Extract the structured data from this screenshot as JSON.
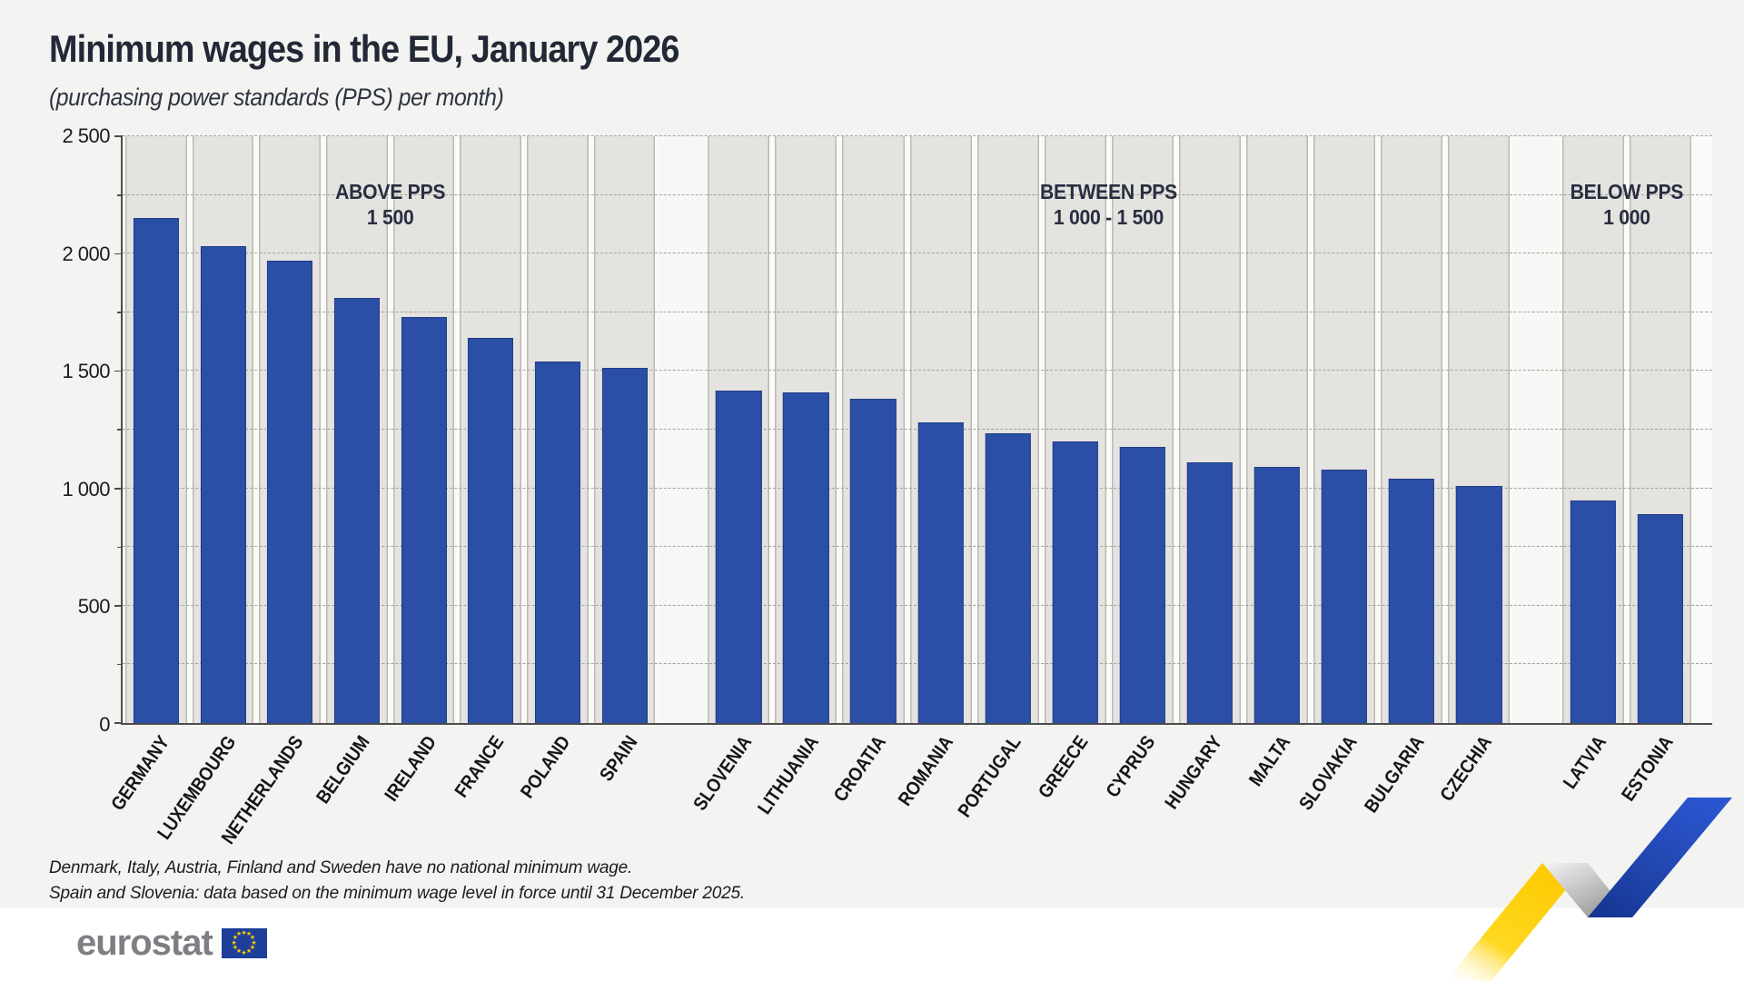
{
  "header": {
    "title": "Minimum wages in the EU, January 2026",
    "subtitle": "(purchasing power standards (PPS) per month)"
  },
  "chart_data": {
    "type": "bar",
    "title": "Minimum wages in the EU, January 2026",
    "subtitle": "(purchasing power standards (PPS) per month)",
    "unit": "PPS per month",
    "ylim": [
      0,
      2500
    ],
    "y_tick_labels": [
      "0",
      "500",
      "1 000",
      "1 500",
      "2 000",
      "2 500"
    ],
    "y_minor_interval": 250,
    "grid": "horizontal dashed minor gridlines every 250, no vertical gridlines",
    "legend": "none",
    "bar_color": "#2b4ea6",
    "groups": [
      {
        "label_line1": "ABOVE PPS",
        "label_line2": "1 500",
        "countries": [
          {
            "name": "GERMANY",
            "value": 2150
          },
          {
            "name": "LUXEMBOURG",
            "value": 2030
          },
          {
            "name": "NETHERLANDS",
            "value": 1970
          },
          {
            "name": "BELGIUM",
            "value": 1810
          },
          {
            "name": "IRELAND",
            "value": 1730
          },
          {
            "name": "FRANCE",
            "value": 1640
          },
          {
            "name": "POLAND",
            "value": 1540
          },
          {
            "name": "SPAIN",
            "value": 1515
          }
        ]
      },
      {
        "label_line1": "BETWEEN PPS",
        "label_line2": "1 000 - 1 500",
        "countries": [
          {
            "name": "SLOVENIA",
            "value": 1415
          },
          {
            "name": "LITHUANIA",
            "value": 1410
          },
          {
            "name": "CROATIA",
            "value": 1380
          },
          {
            "name": "ROMANIA",
            "value": 1280
          },
          {
            "name": "PORTUGAL",
            "value": 1235
          },
          {
            "name": "GREECE",
            "value": 1200
          },
          {
            "name": "CYPRUS",
            "value": 1175
          },
          {
            "name": "HUNGARY",
            "value": 1110
          },
          {
            "name": "MALTA",
            "value": 1090
          },
          {
            "name": "SLOVAKIA",
            "value": 1080
          },
          {
            "name": "BULGARIA",
            "value": 1040
          },
          {
            "name": "CZECHIA",
            "value": 1010
          }
        ]
      },
      {
        "label_line1": "BELOW PPS",
        "label_line2": "1 000",
        "countries": [
          {
            "name": "LATVIA",
            "value": 950
          },
          {
            "name": "ESTONIA",
            "value": 890
          }
        ]
      }
    ]
  },
  "footnotes": [
    "Denmark, Italy, Austria, Finland and Sweden have no national minimum wage.",
    "Spain and Slovenia: data based on the minimum wage level in force until 31 December 2025."
  ],
  "footer": {
    "logo_text": "eurostat"
  },
  "colors": {
    "bar": "#2b4ea6",
    "column_band": "#e4e3e0",
    "background": "#f3f3f1",
    "eu_flag_blue": "#1d3f99",
    "eu_flag_stars": "#ffcc00",
    "logo_gray": "#7d7f83"
  }
}
